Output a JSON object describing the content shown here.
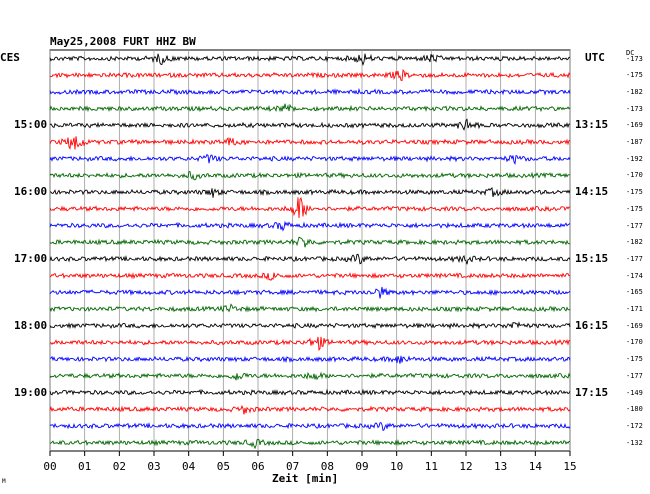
{
  "chart_data": {
    "type": "line",
    "title": "May25,2008   FURT HHZ BW",
    "left_axis_title": "CES",
    "right_axis_title": "UTC",
    "offset_column_title": "DC",
    "xlabel": "Zeit [min]",
    "xlim": [
      0,
      15
    ],
    "x_ticks": [
      "00",
      "01",
      "02",
      "03",
      "04",
      "05",
      "06",
      "07",
      "08",
      "09",
      "10",
      "11",
      "12",
      "13",
      "14",
      "15"
    ],
    "trace_colors": [
      "#000000",
      "#ff0000",
      "#0000ff",
      "#006600"
    ],
    "traces": [
      {
        "dc": "-173"
      },
      {
        "dc": "-175"
      },
      {
        "dc": "-182"
      },
      {
        "dc": "-173"
      },
      {
        "dc": "-169"
      },
      {
        "dc": "-187"
      },
      {
        "dc": "-192"
      },
      {
        "dc": "-170"
      },
      {
        "dc": "-175"
      },
      {
        "dc": "-175"
      },
      {
        "dc": "-177"
      },
      {
        "dc": "-182"
      },
      {
        "dc": "-177"
      },
      {
        "dc": "-174"
      },
      {
        "dc": "-165"
      },
      {
        "dc": "-171"
      },
      {
        "dc": "-169"
      },
      {
        "dc": "-170"
      },
      {
        "dc": "-175"
      },
      {
        "dc": "-177"
      },
      {
        "dc": "-149"
      },
      {
        "dc": "-180"
      },
      {
        "dc": "-172"
      },
      {
        "dc": "-132"
      }
    ],
    "hour_labels": [
      {
        "trace": 4,
        "ces": "15:00",
        "utc": "13:15"
      },
      {
        "trace": 8,
        "ces": "16:00",
        "utc": "14:15"
      },
      {
        "trace": 12,
        "ces": "17:00",
        "utc": "15:15"
      },
      {
        "trace": 16,
        "ces": "18:00",
        "utc": "16:15"
      },
      {
        "trace": 20,
        "ces": "19:00",
        "utc": "17:15"
      }
    ],
    "events": [
      {
        "trace": 0,
        "minute": 3.2,
        "amp": 1.2
      },
      {
        "trace": 0,
        "minute": 9.0,
        "amp": 1.5
      },
      {
        "trace": 0,
        "minute": 11.0,
        "amp": 1.0
      },
      {
        "trace": 1,
        "minute": 10.1,
        "amp": 1.4
      },
      {
        "trace": 3,
        "minute": 6.8,
        "amp": 1.0
      },
      {
        "trace": 4,
        "minute": 12.0,
        "amp": 1.6
      },
      {
        "trace": 5,
        "minute": 0.7,
        "amp": 3.0
      },
      {
        "trace": 5,
        "minute": 5.2,
        "amp": 0.9
      },
      {
        "trace": 6,
        "minute": 4.6,
        "amp": 1.0
      },
      {
        "trace": 6,
        "minute": 13.4,
        "amp": 0.9
      },
      {
        "trace": 7,
        "minute": 4.1,
        "amp": 1.0
      },
      {
        "trace": 8,
        "minute": 4.7,
        "amp": 1.0
      },
      {
        "trace": 8,
        "minute": 12.8,
        "amp": 0.9
      },
      {
        "trace": 9,
        "minute": 7.2,
        "amp": 3.6
      },
      {
        "trace": 10,
        "minute": 6.7,
        "amp": 1.1
      },
      {
        "trace": 11,
        "minute": 7.3,
        "amp": 1.6
      },
      {
        "trace": 12,
        "minute": 8.9,
        "amp": 1.2
      },
      {
        "trace": 12,
        "minute": 12.0,
        "amp": 1.0
      },
      {
        "trace": 13,
        "minute": 6.4,
        "amp": 0.9
      },
      {
        "trace": 14,
        "minute": 9.5,
        "amp": 1.4
      },
      {
        "trace": 15,
        "minute": 5.2,
        "amp": 0.9
      },
      {
        "trace": 16,
        "minute": 13.4,
        "amp": 0.9
      },
      {
        "trace": 17,
        "minute": 7.7,
        "amp": 2.2
      },
      {
        "trace": 18,
        "minute": 10.1,
        "amp": 1.1
      },
      {
        "trace": 19,
        "minute": 5.4,
        "amp": 1.1
      },
      {
        "trace": 19,
        "minute": 7.6,
        "amp": 1.0
      },
      {
        "trace": 21,
        "minute": 5.6,
        "amp": 0.9
      },
      {
        "trace": 22,
        "minute": 9.6,
        "amp": 0.8
      },
      {
        "trace": 23,
        "minute": 5.9,
        "amp": 0.9
      }
    ]
  },
  "corner_mark": "M"
}
